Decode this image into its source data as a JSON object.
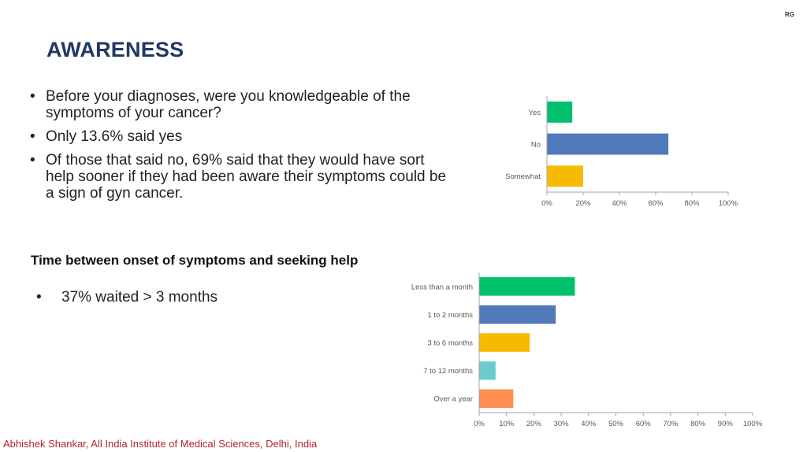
{
  "header": {
    "tag": "RG",
    "title": "AWARENESS"
  },
  "bullets": [
    "Before your diagnoses, were you knowledgeable of the symptoms of your cancer?",
    "Only 13.6% said yes",
    "Of those that said no,  69% said that they would have sort help sooner if they had been aware their symptoms could be a sign of gyn cancer."
  ],
  "section2": {
    "heading": "Time between onset of symptoms and seeking help",
    "bullet_marker": "•",
    "bullet": "37% waited > 3 months"
  },
  "footer": "Abhishek Shankar, All India Institute of Medical Sciences, Delhi, India",
  "chart_data": [
    {
      "type": "bar",
      "orientation": "horizontal",
      "title": "",
      "categories": [
        "Yes",
        "No",
        "Somewhat"
      ],
      "values": [
        14,
        67,
        20
      ],
      "value_unit": "%",
      "xlim": [
        0,
        100
      ],
      "xticks": [
        "0%",
        "20%",
        "40%",
        "60%",
        "80%",
        "100%"
      ],
      "colors": [
        "#00c06b",
        "#4f79b9",
        "#f6bb00"
      ],
      "grid": false,
      "legend": "none"
    },
    {
      "type": "bar",
      "orientation": "horizontal",
      "title": "",
      "categories": [
        "Less than a month",
        "1 to 2 months",
        "3 to 6 months",
        "7 to 12 months",
        "Over a year"
      ],
      "values": [
        35,
        28,
        18.5,
        6,
        12.5
      ],
      "value_unit": "%",
      "xlim": [
        0,
        100
      ],
      "xticks": [
        "0%",
        "10%",
        "20%",
        "30%",
        "40%",
        "50%",
        "60%",
        "70%",
        "80%",
        "90%",
        "100%"
      ],
      "colors": [
        "#00c06b",
        "#4f79b9",
        "#f6bb00",
        "#6ccccc",
        "#ff8c50"
      ],
      "grid": false,
      "legend": "none"
    }
  ]
}
